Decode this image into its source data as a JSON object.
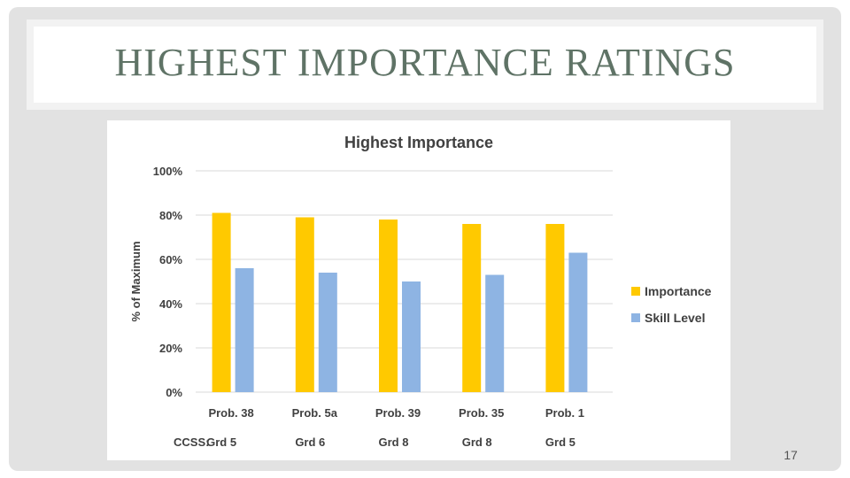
{
  "slide": {
    "title": "HIGHEST IMPORTANCE RATINGS",
    "page_number": "17"
  },
  "chart_data": {
    "type": "bar",
    "title": "Highest Importance",
    "ylabel": "% of Maximum",
    "xlabel": "",
    "ylim": [
      0,
      100
    ],
    "yticks": [
      "0%",
      "20%",
      "40%",
      "60%",
      "80%",
      "100%"
    ],
    "categories": [
      "Prob. 38",
      "Prob. 5a",
      "Prob. 39",
      "Prob. 35",
      "Prob. 1"
    ],
    "secondary_label_prefix": "CCSS:",
    "secondary_labels": [
      "Grd 5",
      "Grd 6",
      "Grd 8",
      "Grd 8",
      "Grd 5"
    ],
    "series": [
      {
        "name": "Importance",
        "color": "#ffc900",
        "values": [
          81,
          79,
          78,
          76,
          76
        ]
      },
      {
        "name": "Skill Level",
        "color": "#8eb4e3",
        "values": [
          56,
          54,
          50,
          53,
          63
        ]
      }
    ],
    "grid": true,
    "legend_position": "right"
  }
}
